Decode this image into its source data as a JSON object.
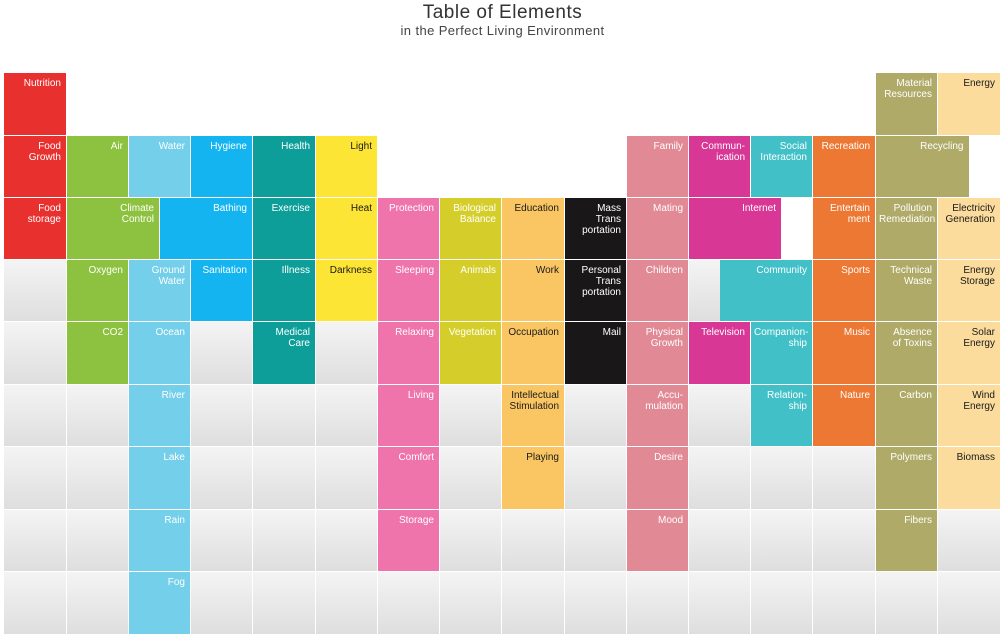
{
  "header": {
    "title": "Table of Elements",
    "subtitle": "in the Perfect Living Environment"
  },
  "colors": {
    "nutrition": "#e8302f",
    "air": "#8cc23f",
    "water": "#74cfea",
    "hygiene": "#13b4ef",
    "health": "#0e9e99",
    "light": "#fce535",
    "protection": "#ee74ab",
    "balance": "#d5ce2a",
    "education": "#fac663",
    "transport": "#1a1718",
    "family": "#e18a95",
    "communication": "#d83795",
    "social": "#42c0c8",
    "recreation": "#ec7834",
    "resources": "#afaa68",
    "energy": "#fbdc9c",
    "background": "#e6e6e6"
  },
  "elements": [
    {
      "label": "Nutrition",
      "group": "nutrition"
    },
    {
      "label": "Food\nGrowth",
      "group": "nutrition"
    },
    {
      "label": "Food\nstorage",
      "group": "nutrition"
    },
    {
      "label": "Air",
      "group": "air"
    },
    {
      "label": "Climate\nControl",
      "group": "air"
    },
    {
      "label": "Oxygen",
      "group": "air"
    },
    {
      "label": "CO2",
      "group": "air"
    },
    {
      "label": "Water",
      "group": "water"
    },
    {
      "label": "Ground\nWater",
      "group": "water"
    },
    {
      "label": "Ocean",
      "group": "water"
    },
    {
      "label": "River",
      "group": "water"
    },
    {
      "label": "Lake",
      "group": "water"
    },
    {
      "label": "Rain",
      "group": "water"
    },
    {
      "label": "Fog",
      "group": "water"
    },
    {
      "label": "Hygiene",
      "group": "hygiene"
    },
    {
      "label": "Bathing",
      "group": "hygiene"
    },
    {
      "label": "Sanitation",
      "group": "hygiene"
    },
    {
      "label": "Health",
      "group": "health"
    },
    {
      "label": "Exercise",
      "group": "health"
    },
    {
      "label": "Illness",
      "group": "health"
    },
    {
      "label": "Medical\nCare",
      "group": "health"
    },
    {
      "label": "Light",
      "group": "light"
    },
    {
      "label": "Heat",
      "group": "light"
    },
    {
      "label": "Darkness",
      "group": "light"
    },
    {
      "label": "Protection",
      "group": "protection"
    },
    {
      "label": "Sleeping",
      "group": "protection"
    },
    {
      "label": "Relaxing",
      "group": "protection"
    },
    {
      "label": "Living",
      "group": "protection"
    },
    {
      "label": "Comfort",
      "group": "protection"
    },
    {
      "label": "Storage",
      "group": "protection"
    },
    {
      "label": "Biological\nBalance",
      "group": "balance"
    },
    {
      "label": "Animals",
      "group": "balance"
    },
    {
      "label": "Vegetation",
      "group": "balance"
    },
    {
      "label": "Education",
      "group": "education"
    },
    {
      "label": "Work",
      "group": "education"
    },
    {
      "label": "Occupation",
      "group": "education"
    },
    {
      "label": "Intellectual\nStimulation",
      "group": "education"
    },
    {
      "label": "Playing",
      "group": "education"
    },
    {
      "label": "Mass\nTrans\nportation",
      "group": "transport"
    },
    {
      "label": "Personal\nTrans\nportation",
      "group": "transport"
    },
    {
      "label": "Mail",
      "group": "transport"
    },
    {
      "label": "Family",
      "group": "family"
    },
    {
      "label": "Mating",
      "group": "family"
    },
    {
      "label": "Children",
      "group": "family"
    },
    {
      "label": "Physical\nGrowth",
      "group": "family"
    },
    {
      "label": "Accu-\nmulation",
      "group": "family"
    },
    {
      "label": "Desire",
      "group": "family"
    },
    {
      "label": "Mood",
      "group": "family"
    },
    {
      "label": "Commun-\nication",
      "group": "communication"
    },
    {
      "label": "Internet",
      "group": "communication"
    },
    {
      "label": "Television",
      "group": "communication"
    },
    {
      "label": "Social\nInteraction",
      "group": "social"
    },
    {
      "label": "Community",
      "group": "social"
    },
    {
      "label": "Companion-\nship",
      "group": "social"
    },
    {
      "label": "Relation-\nship",
      "group": "social"
    },
    {
      "label": "Recreation",
      "group": "recreation"
    },
    {
      "label": "Entertain\nment",
      "group": "recreation"
    },
    {
      "label": "Sports",
      "group": "recreation"
    },
    {
      "label": "Music",
      "group": "recreation"
    },
    {
      "label": "Nature",
      "group": "recreation"
    },
    {
      "label": "Material\nResources",
      "group": "resources"
    },
    {
      "label": "Recycling",
      "group": "resources"
    },
    {
      "label": "Pollution\nRemediation",
      "group": "resources"
    },
    {
      "label": "Technical\nWaste",
      "group": "resources"
    },
    {
      "label": "Absence\nof Toxins",
      "group": "resources"
    },
    {
      "label": "Carbon",
      "group": "resources"
    },
    {
      "label": "Polymers",
      "group": "resources"
    },
    {
      "label": "Fibers",
      "group": "resources"
    },
    {
      "label": "Energy",
      "group": "energy"
    },
    {
      "label": "Electricity\nGeneration",
      "group": "energy"
    },
    {
      "label": "Energy\nStorage",
      "group": "energy"
    },
    {
      "label": "Solar\nEnergy",
      "group": "energy"
    },
    {
      "label": "Wind\nEnergy",
      "group": "energy"
    },
    {
      "label": "Biomass",
      "group": "energy"
    }
  ]
}
